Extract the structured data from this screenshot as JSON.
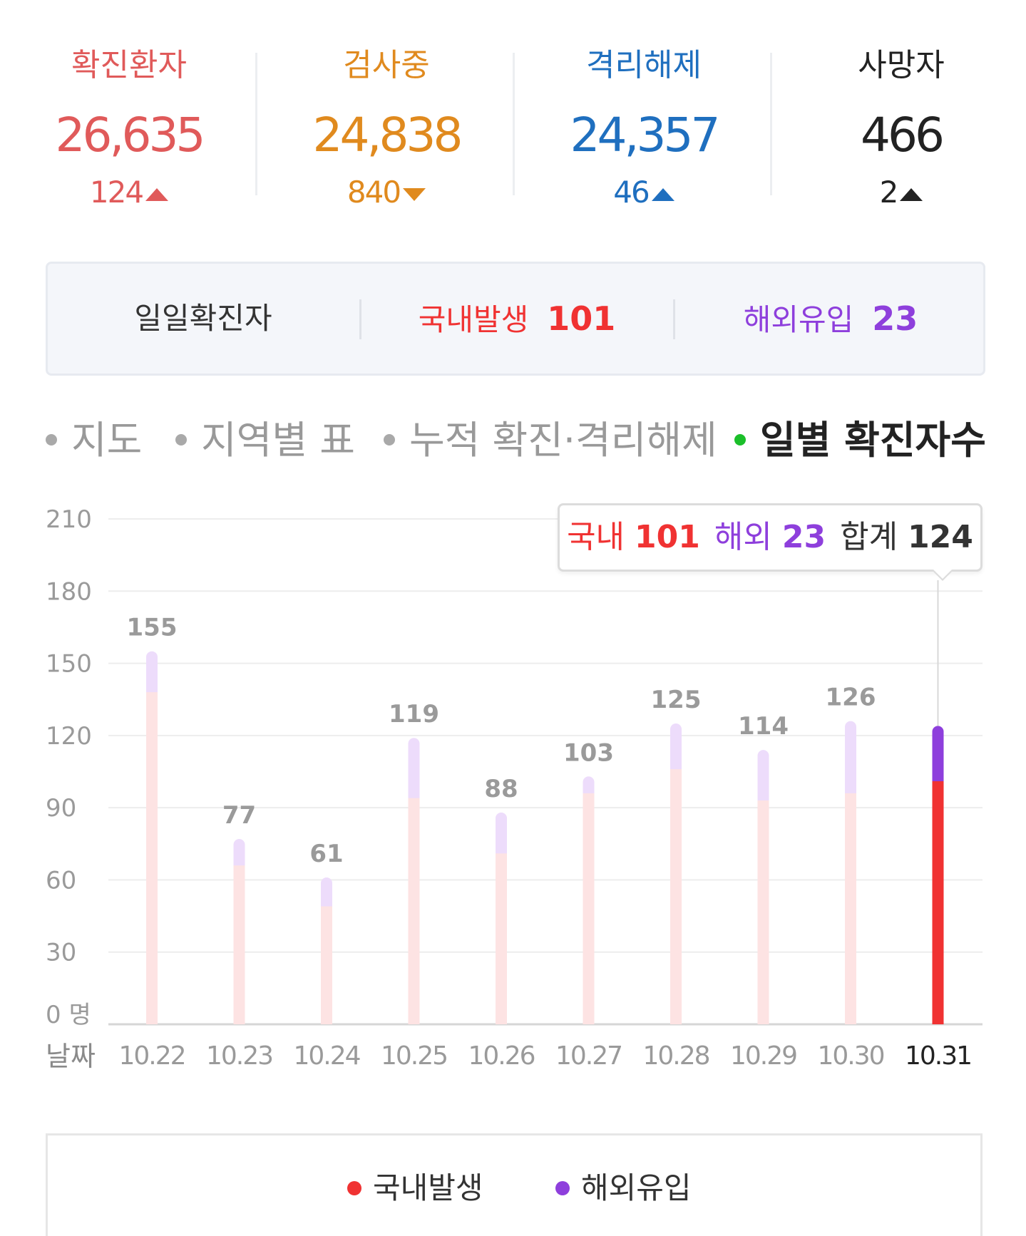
{
  "stats": [
    {
      "label": "확진환자",
      "value": "26,635",
      "delta": "124",
      "direction": "up",
      "color": "#e05a5a"
    },
    {
      "label": "검사중",
      "value": "24,838",
      "delta": "840",
      "direction": "down",
      "color": "#e08a1e"
    },
    {
      "label": "격리해제",
      "value": "24,357",
      "delta": "46",
      "direction": "up",
      "color": "#1f6fbf"
    },
    {
      "label": "사망자",
      "value": "466",
      "delta": "2",
      "direction": "up",
      "color": "#222222"
    }
  ],
  "daily": {
    "title": "일일확진자",
    "domestic_label": "국내발생",
    "domestic_value": "101",
    "overseas_label": "해외유입",
    "overseas_value": "23"
  },
  "tabs": [
    {
      "label": "지도",
      "active": false
    },
    {
      "label": "지역별 표",
      "active": false
    },
    {
      "label": "누적 확진·격리해제",
      "active": false
    },
    {
      "label": "일별 확진자수",
      "active": true
    }
  ],
  "tooltip": {
    "domestic_label": "국내",
    "domestic_value": "101",
    "overseas_label": "해외",
    "overseas_value": "23",
    "total_label": "합계",
    "total_value": "124"
  },
  "legend": {
    "domestic": "국내발생",
    "overseas": "해외유입"
  },
  "colors": {
    "domestic": "#f03232",
    "overseas": "#8e3fdc",
    "domestic_faded": "#fde3e3",
    "overseas_faded": "#eddcfb"
  },
  "chart_data": {
    "type": "bar",
    "stacked": true,
    "xlabel": "날짜",
    "y_unit": "명",
    "ylim": [
      0,
      210
    ],
    "yticks": [
      0,
      30,
      60,
      90,
      120,
      150,
      180,
      210
    ],
    "categories": [
      "10.22",
      "10.23",
      "10.24",
      "10.25",
      "10.26",
      "10.27",
      "10.28",
      "10.29",
      "10.30",
      "10.31"
    ],
    "series": [
      {
        "name": "국내발생",
        "values": [
          138,
          66,
          49,
          94,
          71,
          96,
          106,
          93,
          96,
          101
        ]
      },
      {
        "name": "해외유입",
        "values": [
          17,
          11,
          12,
          25,
          17,
          7,
          19,
          21,
          30,
          23
        ]
      }
    ],
    "totals": [
      155,
      77,
      61,
      119,
      88,
      103,
      125,
      114,
      126,
      124
    ],
    "highlighted": "10.31",
    "grid": true
  }
}
